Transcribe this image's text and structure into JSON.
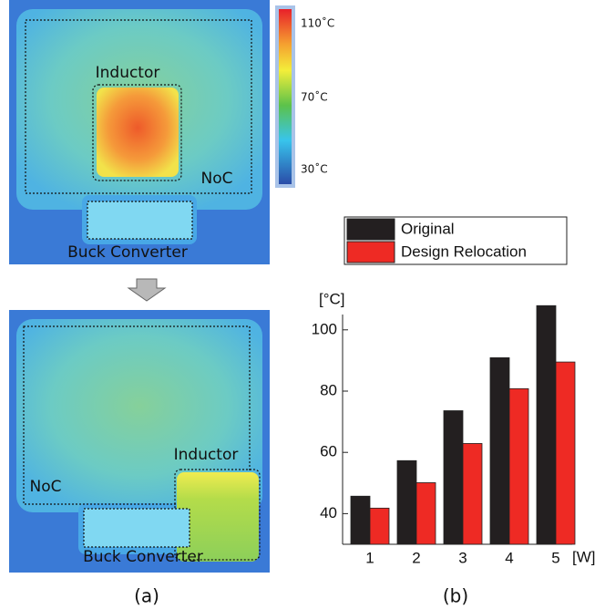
{
  "chart_data": {
    "type": "bar",
    "x_label": "[W]",
    "y_label": "[°C]",
    "categories": [
      "1",
      "2",
      "3",
      "4",
      "5"
    ],
    "series": [
      {
        "name": "Original",
        "color": "#231f20",
        "values": [
          45.7,
          57.3,
          73.6,
          90.9,
          107.9
        ]
      },
      {
        "name": "Design Relocation",
        "color": "#ee2a24",
        "values": [
          41.8,
          50.1,
          62.9,
          80.8,
          89.5
        ]
      }
    ],
    "ylim": [
      30,
      105
    ],
    "yticks": [
      40,
      60,
      80,
      100
    ],
    "legend": "top",
    "grid": false
  },
  "figure": {
    "top_map": {
      "inductor": "Inductor",
      "noc": "NoC",
      "buck": "Buck Converter"
    },
    "bottom_map": {
      "inductor": "Inductor",
      "noc": "NoC",
      "buck": "Buck Converter"
    },
    "colorbar": {
      "high": "110˚C",
      "mid": "70˚C",
      "low": "30˚C"
    },
    "panel_a": "(a)",
    "panel_b": "(b)"
  }
}
